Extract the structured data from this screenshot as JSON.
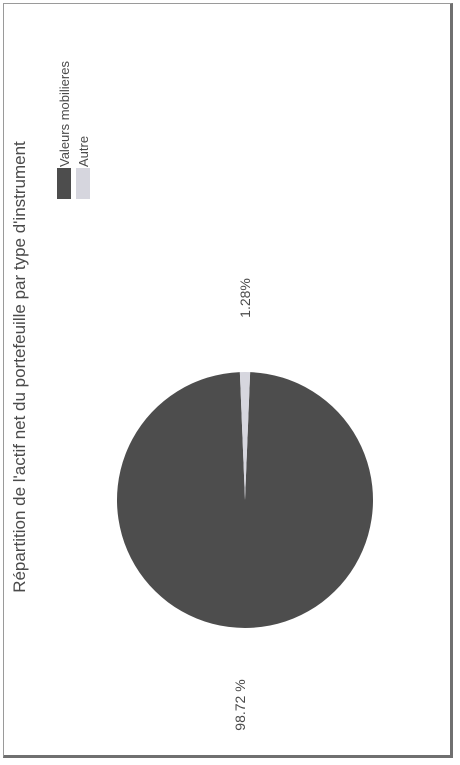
{
  "chart_data": {
    "type": "pie",
    "title": "Répartition de l'actif net du portefeuille par type d'instrument",
    "categories": [
      "Valeurs mobilieres",
      "Autre"
    ],
    "values": [
      98.72,
      1.28
    ],
    "data_labels": [
      "98.72 %",
      "1.28%"
    ],
    "colors": [
      "#4d4d4d",
      "#d6d6de"
    ],
    "legend_position": "top-right",
    "orientation": "rotated-90-ccw"
  }
}
